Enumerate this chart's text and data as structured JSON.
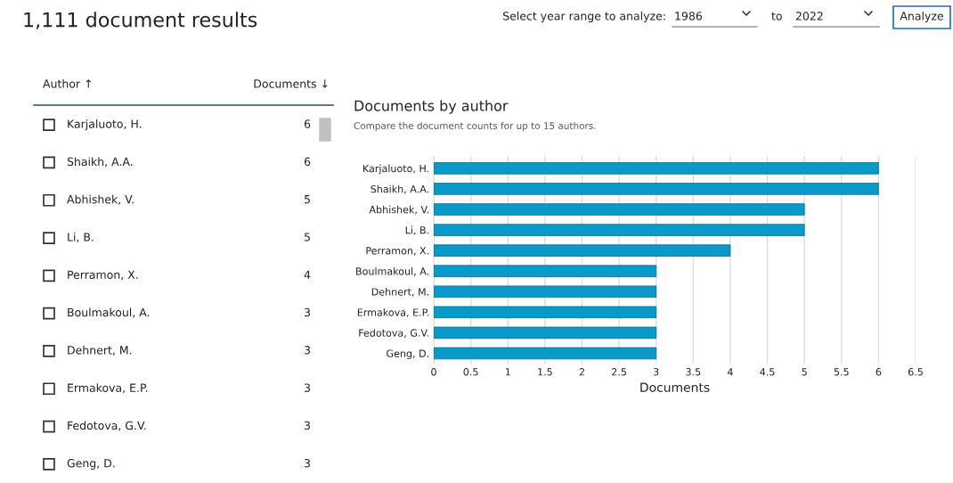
{
  "chart_data": [
    {
      "type": "other",
      "title": "1,111 document results",
      "annotations": [
        "Select year range to analyze:",
        "1986",
        "to",
        "2022",
        "Analyze"
      ]
    },
    {
      "type": "heatmap",
      "ylabel": "Author ↑",
      "categories": [
        "Documents ↓"
      ],
      "y_categories": [
        "Karjaluoto, H.",
        "Shaikh, A.A.",
        "Abhishek, V.",
        "Li, B.",
        "Perramon, X.",
        "Boulmakoul, A.",
        "Dehnert, M.",
        "Ermakova, E.P.",
        "Fedotova, G.V.",
        "Geng, D."
      ],
      "cells": [
        [
          6
        ],
        [
          6
        ],
        [
          5
        ],
        [
          5
        ],
        [
          4
        ],
        [
          3
        ],
        [
          3
        ],
        [
          3
        ],
        [
          3
        ],
        [
          3
        ]
      ],
      "color": "#ffffff",
      "data_labels": true
    },
    {
      "type": "bar",
      "orientation": "horizontal",
      "title": "Documents by author",
      "subtitle": "Compare the document counts for up to 15 authors.",
      "xlabel": "Documents",
      "categories": [
        "Karjaluoto, H.",
        "Shaikh, A.A.",
        "Abhishek, V.",
        "Li, B.",
        "Perramon, X.",
        "Boulmakoul, A.",
        "Dehnert, M.",
        "Ermakova, E.P.",
        "Fedotova, G.V.",
        "Geng, D."
      ],
      "values": [
        6,
        6,
        5,
        5,
        4,
        3,
        3,
        3,
        3,
        3
      ],
      "color": "#0a9ac9",
      "xlim": [
        0,
        6.5
      ],
      "xticks": [
        0,
        0.5,
        1,
        1.5,
        2,
        2.5,
        3,
        3.5,
        4,
        4.5,
        5,
        5.5,
        6,
        6.5
      ],
      "grid": "x"
    }
  ]
}
